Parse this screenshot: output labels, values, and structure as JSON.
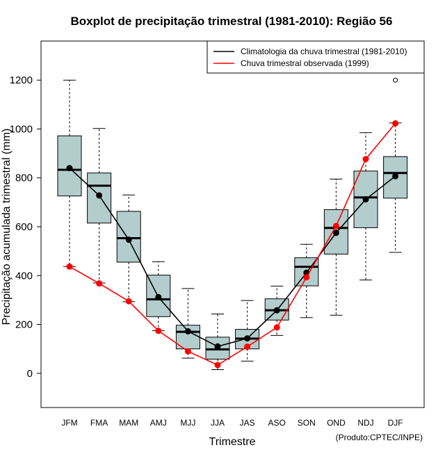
{
  "chart_data": {
    "type": "boxplot",
    "title": "Boxplot de precipitação trimestral (1981-2010): Região 56",
    "xlabel": "Trimestre",
    "ylabel": "Precipitação acumulada trimestral (mm)",
    "ylim": [
      -140,
      1360
    ],
    "yticks": [
      0,
      200,
      400,
      600,
      800,
      1000,
      1200
    ],
    "categories": [
      "JFM",
      "FMA",
      "MAM",
      "AMJ",
      "MJJ",
      "JJA",
      "JAS",
      "ASO",
      "SON",
      "OND",
      "NDJ",
      "DJF"
    ],
    "boxes": [
      {
        "whisker_low": 437,
        "q1": 726,
        "median": 833,
        "q3": 972,
        "whisker_high": 1200,
        "outliers": []
      },
      {
        "whisker_low": 370,
        "q1": 615,
        "median": 768,
        "q3": 820,
        "whisker_high": 1002,
        "outliers": []
      },
      {
        "whisker_low": 293,
        "q1": 455,
        "median": 553,
        "q3": 663,
        "whisker_high": 730,
        "outliers": []
      },
      {
        "whisker_low": 175,
        "q1": 232,
        "median": 303,
        "q3": 402,
        "whisker_high": 457,
        "outliers": []
      },
      {
        "whisker_low": 62,
        "q1": 100,
        "median": 170,
        "q3": 197,
        "whisker_high": 347,
        "outliers": []
      },
      {
        "whisker_low": 15,
        "q1": 58,
        "median": 98,
        "q3": 148,
        "whisker_high": 243,
        "outliers": []
      },
      {
        "whisker_low": 50,
        "q1": 100,
        "median": 142,
        "q3": 180,
        "whisker_high": 298,
        "outliers": []
      },
      {
        "whisker_low": 155,
        "q1": 218,
        "median": 258,
        "q3": 305,
        "whisker_high": 357,
        "outliers": []
      },
      {
        "whisker_low": 228,
        "q1": 358,
        "median": 436,
        "q3": 473,
        "whisker_high": 528,
        "outliers": []
      },
      {
        "whisker_low": 238,
        "q1": 488,
        "median": 595,
        "q3": 670,
        "whisker_high": 795,
        "outliers": []
      },
      {
        "whisker_low": 382,
        "q1": 596,
        "median": 720,
        "q3": 828,
        "whisker_high": 985,
        "outliers": []
      },
      {
        "whisker_low": 495,
        "q1": 717,
        "median": 820,
        "q3": 887,
        "whisker_high": 1025,
        "outliers": [
          1200
        ]
      }
    ],
    "series": [
      {
        "name": "Climatologia da chuva trimestral (1981-2010)",
        "color": "#000000",
        "values": [
          840,
          728,
          547,
          312,
          172,
          110,
          143,
          258,
          412,
          575,
          712,
          807
        ]
      },
      {
        "name": "Chuva trimestral observada (1999)",
        "color": "#ff0000",
        "values": [
          437,
          368,
          295,
          174,
          90,
          34,
          109,
          188,
          393,
          603,
          877,
          1023
        ]
      }
    ],
    "box_fill": "#b3cccc",
    "legend_position": "top-right",
    "note": "(Produto:CPTEC/INPE)"
  }
}
